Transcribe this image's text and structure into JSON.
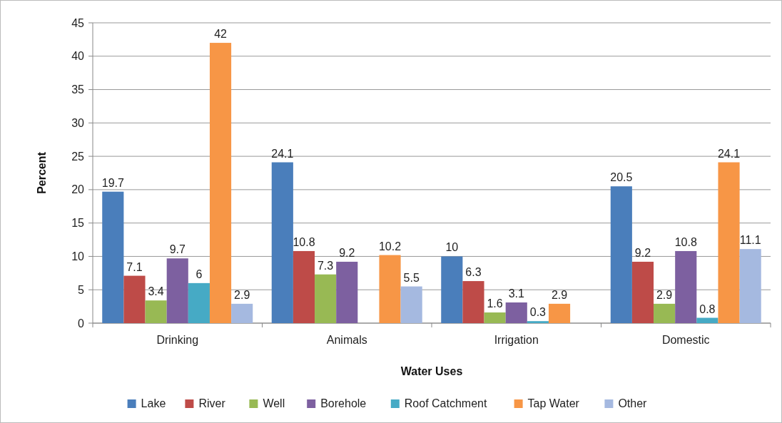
{
  "chart_data": {
    "type": "bar",
    "xlabel": "Water Uses",
    "ylabel": "Percent",
    "categories": [
      "Drinking",
      "Animals",
      "Irrigation",
      "Domestic"
    ],
    "series": [
      {
        "name": "Lake",
        "color": "#4a7ebb",
        "values": [
          19.7,
          24.1,
          10,
          20.5
        ]
      },
      {
        "name": "River",
        "color": "#be4b48",
        "values": [
          7.1,
          10.8,
          6.3,
          9.2
        ]
      },
      {
        "name": "Well",
        "color": "#98b954",
        "values": [
          3.4,
          7.3,
          1.6,
          2.9
        ]
      },
      {
        "name": "Borehole",
        "color": "#7d60a0",
        "values": [
          9.7,
          9.2,
          3.1,
          10.8
        ]
      },
      {
        "name": "Roof Catchment",
        "color": "#46aac5",
        "values": [
          6,
          null,
          0.3,
          0.8
        ]
      },
      {
        "name": "Tap Water",
        "color": "#f79646",
        "values": [
          42,
          10.2,
          2.9,
          24.1
        ]
      },
      {
        "name": "Other",
        "color": "#a5b9e0",
        "values": [
          2.9,
          5.5,
          null,
          11.1
        ]
      }
    ],
    "ylim": [
      0,
      45
    ],
    "yticks": [
      0,
      5,
      10,
      15,
      20,
      25,
      30,
      35,
      40,
      45
    ],
    "grid": "y",
    "legend": "bottom",
    "data_labels": true
  }
}
